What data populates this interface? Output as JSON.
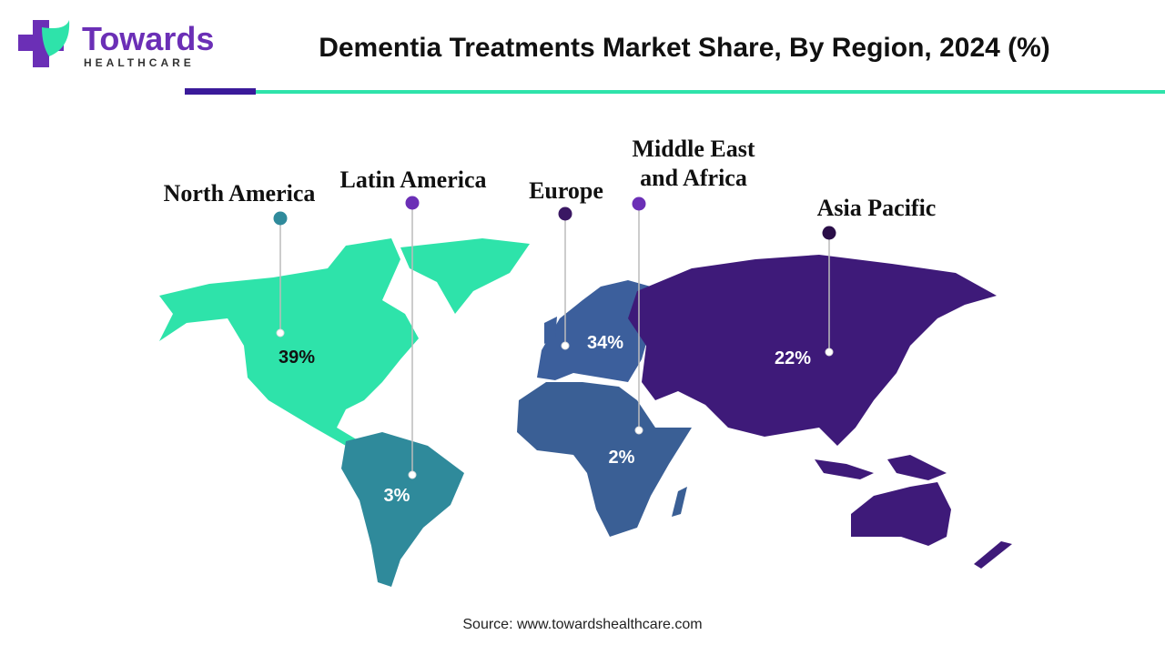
{
  "header": {
    "logo_name": "Towards",
    "logo_sub": "HEALTHCARE",
    "title": "Dementia Treatments Market Share, By Region, 2024 (%)"
  },
  "regions": [
    {
      "label": [
        "North America"
      ],
      "share": "39%",
      "color": "#2ee3aa",
      "marker_color": "#2f8a9b",
      "share_color": "#111111"
    },
    {
      "label": [
        "Latin America"
      ],
      "share": "3%",
      "color": "#2f8a9b",
      "marker_color": "#6b2fb6",
      "share_color": "#ffffff"
    },
    {
      "label": [
        "Europe"
      ],
      "share": "34%",
      "color": "#3c5f9c",
      "marker_color": "#3a1763",
      "share_color": "#ffffff"
    },
    {
      "label": [
        "Middle East",
        "and Africa"
      ],
      "share": "2%",
      "color": "#3a5f95",
      "marker_color": "#6b2fb6",
      "share_color": "#ffffff"
    },
    {
      "label": [
        "Asia Pacific"
      ],
      "share": "22%",
      "color": "#3e1a79",
      "marker_color": "#2a0e48",
      "share_color": "#ffffff"
    }
  ],
  "source": "Source: www.towardshealthcare.com"
}
